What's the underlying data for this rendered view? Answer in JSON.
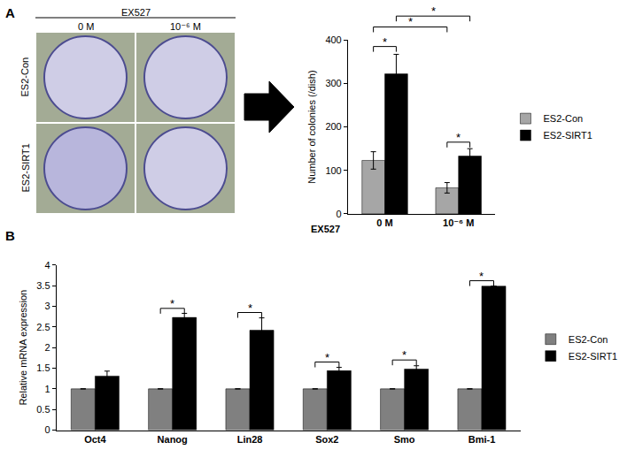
{
  "panel_labels": [
    "A",
    "B"
  ],
  "photo_grid": {
    "header": "EX527",
    "columns": [
      "0 M",
      "10⁻⁶ M"
    ],
    "rows": [
      "ES2-Con",
      "ES2-SIRT1"
    ]
  },
  "chart_data": [
    {
      "type": "bar",
      "xlabel": "EX527",
      "ylabel": "Number of colonies (/dish)",
      "categories": [
        "0 M",
        "10⁻⁶ M"
      ],
      "series": [
        {
          "name": "ES2-Con",
          "color": "#a6a6a6",
          "values": [
            123,
            60
          ],
          "errors": [
            20,
            12
          ]
        },
        {
          "name": "ES2-SIRT1",
          "color": "#000000",
          "values": [
            322,
            133
          ],
          "errors": [
            45,
            17
          ]
        }
      ],
      "ylim": [
        0,
        400
      ],
      "yticks": [
        0,
        100,
        200,
        300,
        400
      ],
      "grid": false,
      "legend": "right",
      "annotations": [
        {
          "text": "*",
          "from": [
            0,
            0
          ],
          "to": [
            0,
            1
          ],
          "y": 385
        },
        {
          "text": "*",
          "from": [
            0,
            0
          ],
          "to": [
            1,
            0
          ],
          "y": 430
        },
        {
          "text": "*",
          "from": [
            0,
            1
          ],
          "to": [
            1,
            1
          ],
          "y": 455
        },
        {
          "text": "*",
          "from": [
            1,
            0
          ],
          "to": [
            1,
            1
          ],
          "y": 165
        }
      ]
    },
    {
      "type": "bar",
      "ylabel": "Relative mRNA expression",
      "categories": [
        "Oct4",
        "Nanog",
        "Lin28",
        "Sox2",
        "Smo",
        "Bmi-1"
      ],
      "series": [
        {
          "name": "ES2-Con",
          "color": "#808080",
          "values": [
            1,
            1,
            1,
            1,
            1,
            1
          ],
          "errors": [
            0,
            0,
            0,
            0,
            0,
            0
          ]
        },
        {
          "name": "ES2-SIRT1",
          "color": "#000000",
          "values": [
            1.31,
            2.73,
            2.42,
            1.44,
            1.48,
            3.49
          ],
          "errors": [
            0.12,
            0.1,
            0.3,
            0.08,
            0.08,
            0
          ]
        }
      ],
      "ylim": [
        0,
        4
      ],
      "yticks": [
        0,
        0.5,
        1,
        1.5,
        2,
        2.5,
        3,
        3.5,
        4
      ],
      "grid": false,
      "legend": "right",
      "annotations": [
        {
          "text": "*",
          "from": [
            1,
            0
          ],
          "to": [
            1,
            1
          ],
          "y": 2.95
        },
        {
          "text": "*",
          "from": [
            2,
            0
          ],
          "to": [
            2,
            1
          ],
          "y": 2.85
        },
        {
          "text": "*",
          "from": [
            3,
            0
          ],
          "to": [
            3,
            1
          ],
          "y": 1.65
        },
        {
          "text": "*",
          "from": [
            4,
            0
          ],
          "to": [
            4,
            1
          ],
          "y": 1.7
        },
        {
          "text": "*",
          "from": [
            5,
            0
          ],
          "to": [
            5,
            1
          ],
          "y": 3.62
        }
      ]
    }
  ]
}
